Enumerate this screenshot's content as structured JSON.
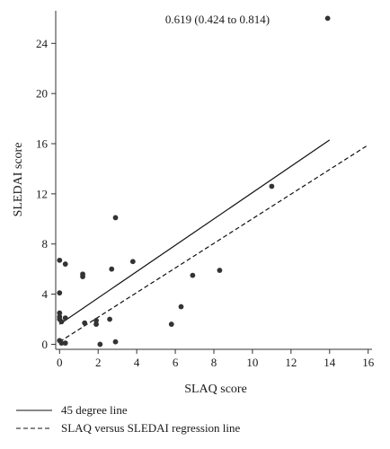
{
  "chart_data": {
    "type": "scatter",
    "xlabel": "SLAQ score",
    "ylabel": "SLEDAI score",
    "annotation": "0.619 (0.424 to 0.814)",
    "xlim": [
      -0.2,
      16.2
    ],
    "ylim": [
      -0.4,
      26.6
    ],
    "x_ticks": [
      0,
      2,
      4,
      6,
      8,
      10,
      12,
      14,
      16
    ],
    "y_ticks": [
      0,
      4,
      8,
      12,
      16,
      20,
      24
    ],
    "grid": false,
    "legend_position": "bottom",
    "points": [
      {
        "x": 0.0,
        "y": 6.7
      },
      {
        "x": 0.3,
        "y": 6.4
      },
      {
        "x": 0.0,
        "y": 4.1
      },
      {
        "x": 0.0,
        "y": 2.5
      },
      {
        "x": 0.0,
        "y": 2.2
      },
      {
        "x": 0.0,
        "y": 2.0
      },
      {
        "x": 0.1,
        "y": 1.8
      },
      {
        "x": 0.3,
        "y": 2.1
      },
      {
        "x": 0.0,
        "y": 0.3
      },
      {
        "x": 0.1,
        "y": 0.1
      },
      {
        "x": 0.3,
        "y": 0.1
      },
      {
        "x": 1.2,
        "y": 5.6
      },
      {
        "x": 1.2,
        "y": 5.4
      },
      {
        "x": 1.3,
        "y": 1.7
      },
      {
        "x": 1.9,
        "y": 1.9
      },
      {
        "x": 1.9,
        "y": 1.6
      },
      {
        "x": 2.1,
        "y": 0.0
      },
      {
        "x": 2.6,
        "y": 2.0
      },
      {
        "x": 2.7,
        "y": 6.0
      },
      {
        "x": 2.9,
        "y": 10.1
      },
      {
        "x": 2.9,
        "y": 0.2
      },
      {
        "x": 3.8,
        "y": 6.6
      },
      {
        "x": 5.8,
        "y": 1.6
      },
      {
        "x": 6.3,
        "y": 3.0
      },
      {
        "x": 6.9,
        "y": 5.5
      },
      {
        "x": 8.3,
        "y": 5.9
      },
      {
        "x": 11.0,
        "y": 12.6
      },
      {
        "x": 13.9,
        "y": 26.0
      }
    ],
    "series": [
      {
        "name": "45 degree line",
        "style": "solid",
        "x": [
          0,
          14
        ],
        "y": [
          1.6,
          16.3
        ]
      },
      {
        "name": "SLAQ versus SLEDAI regression line",
        "style": "dashed",
        "x": [
          0,
          16
        ],
        "y": [
          0.2,
          15.9
        ]
      }
    ],
    "colors": {
      "points": "#333333",
      "lines": "#111111",
      "axis": "#333333"
    }
  }
}
